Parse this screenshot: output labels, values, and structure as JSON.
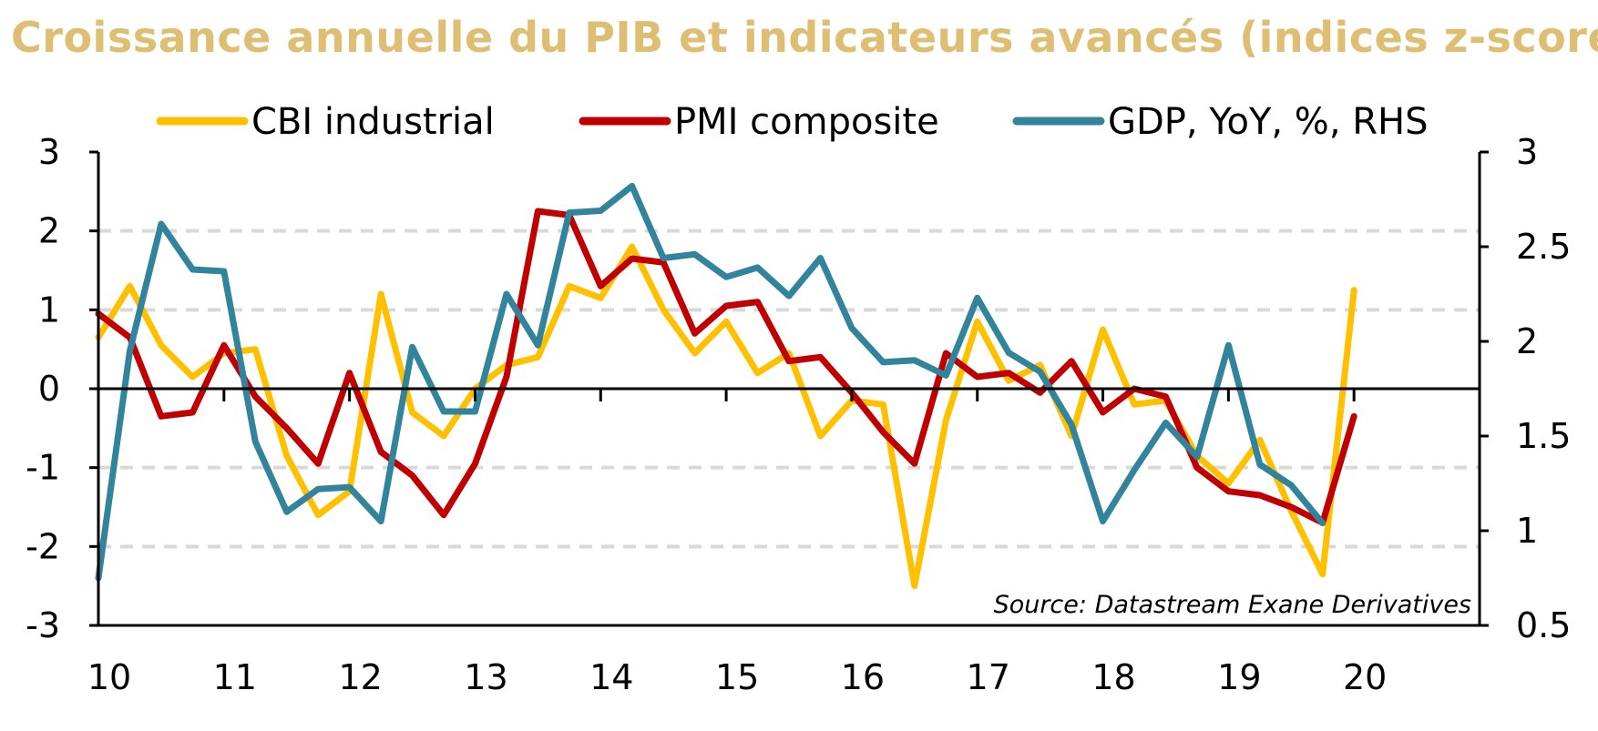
{
  "chart_data": {
    "type": "line",
    "title": "Croissance annuelle du PIB et indicateurs avancés (indices z-score)",
    "source": "Source: Datastream Exane Derivatives",
    "x_tick_labels": [
      "10",
      "11",
      "12",
      "13",
      "14",
      "15",
      "16",
      "17",
      "18",
      "19",
      "20"
    ],
    "x_tick_values": [
      2010,
      2011,
      2012,
      2013,
      2014,
      2015,
      2016,
      2017,
      2018,
      2019,
      2020
    ],
    "xlim": [
      2010,
      2021
    ],
    "ylim": [
      -3,
      3
    ],
    "y_ticks": [
      3,
      2,
      1,
      0,
      -1,
      -2,
      -3
    ],
    "y_tick_labels": [
      "3",
      "2",
      "1",
      "0",
      "-1",
      "-2",
      "-3"
    ],
    "y2lim": [
      0.5,
      3
    ],
    "y2_ticks": [
      3,
      2.5,
      2,
      1.5,
      1,
      0.5
    ],
    "y2_tick_labels": [
      "3",
      "2.5",
      "2",
      "1.5",
      "1",
      "0.5"
    ],
    "grid": "horizontal dashed",
    "legend_position": "top",
    "series": [
      {
        "name": "CBI industrial",
        "color": "#FFC000",
        "axis": "left",
        "x": [
          2010,
          2010.25,
          2010.5,
          2010.75,
          2011,
          2011.25,
          2011.5,
          2011.75,
          2012,
          2012.25,
          2012.5,
          2012.75,
          2013,
          2013.25,
          2013.5,
          2013.75,
          2014,
          2014.25,
          2014.5,
          2014.75,
          2015,
          2015.25,
          2015.5,
          2015.75,
          2016,
          2016.25,
          2016.5,
          2016.75,
          2017,
          2017.25,
          2017.5,
          2017.75,
          2018,
          2018.25,
          2018.5,
          2018.75,
          2019,
          2019.25,
          2019.5,
          2019.75,
          2020
        ],
        "values": [
          0.65,
          1.3,
          0.55,
          0.15,
          0.45,
          0.5,
          -0.85,
          -1.6,
          -1.3,
          1.2,
          -0.3,
          -0.6,
          0.0,
          0.3,
          0.4,
          1.3,
          1.15,
          1.8,
          1.0,
          0.45,
          0.85,
          0.2,
          0.45,
          -0.6,
          -0.15,
          -0.2,
          -2.5,
          -0.4,
          0.85,
          0.1,
          0.3,
          -0.6,
          0.75,
          -0.2,
          -0.15,
          -0.85,
          -1.2,
          -0.65,
          -1.55,
          -2.35,
          1.25
        ]
      },
      {
        "name": "PMI composite",
        "color": "#C00000",
        "axis": "left",
        "x": [
          2010,
          2010.25,
          2010.5,
          2010.75,
          2011,
          2011.25,
          2011.5,
          2011.75,
          2012,
          2012.25,
          2012.5,
          2012.75,
          2013,
          2013.25,
          2013.5,
          2013.75,
          2014,
          2014.25,
          2014.5,
          2014.75,
          2015,
          2015.25,
          2015.5,
          2015.75,
          2016,
          2016.25,
          2016.5,
          2016.75,
          2017,
          2017.25,
          2017.5,
          2017.75,
          2018,
          2018.25,
          2018.5,
          2018.75,
          2019,
          2019.25,
          2019.5,
          2019.75,
          2020
        ],
        "values": [
          0.95,
          0.65,
          -0.35,
          -0.3,
          0.55,
          -0.1,
          -0.5,
          -0.95,
          0.2,
          -0.8,
          -1.1,
          -1.6,
          -0.95,
          0.15,
          2.25,
          2.2,
          1.3,
          1.65,
          1.6,
          0.7,
          1.05,
          1.1,
          0.35,
          0.4,
          -0.05,
          -0.55,
          -0.95,
          0.45,
          0.15,
          0.2,
          -0.05,
          0.35,
          -0.3,
          0.0,
          -0.1,
          -1.0,
          -1.3,
          -1.35,
          -1.5,
          -1.7,
          -0.35
        ]
      },
      {
        "name": "GDP, YoY, %, RHS",
        "color": "#31849B",
        "axis": "right",
        "x": [
          2010,
          2010.25,
          2010.5,
          2010.75,
          2011,
          2011.25,
          2011.5,
          2011.75,
          2012,
          2012.25,
          2012.5,
          2012.75,
          2013,
          2013.25,
          2013.5,
          2013.75,
          2014,
          2014.25,
          2014.5,
          2014.75,
          2015,
          2015.25,
          2015.5,
          2015.75,
          2016,
          2016.25,
          2016.5,
          2016.75,
          2017,
          2017.25,
          2017.5,
          2017.75,
          2018,
          2018.25,
          2018.5,
          2018.75,
          2019,
          2019.25,
          2019.5,
          2019.75
        ],
        "values": [
          0.75,
          1.95,
          2.62,
          2.38,
          2.37,
          1.47,
          1.1,
          1.22,
          1.23,
          1.05,
          1.97,
          1.63,
          1.63,
          2.25,
          1.98,
          2.68,
          2.69,
          2.82,
          2.44,
          2.46,
          2.34,
          2.39,
          2.24,
          2.44,
          2.07,
          1.89,
          1.9,
          1.82,
          2.23,
          1.94,
          1.84,
          1.56,
          1.05,
          1.32,
          1.57,
          1.39,
          1.98,
          1.35,
          1.24,
          1.04
        ]
      }
    ]
  }
}
